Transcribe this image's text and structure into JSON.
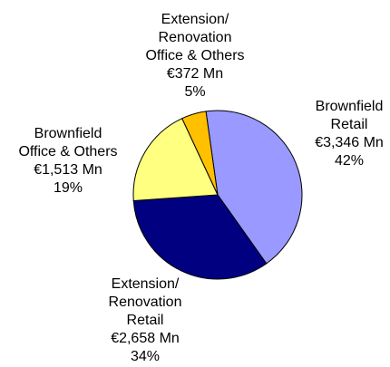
{
  "chart_data": {
    "type": "pie",
    "categories": [
      "Brownfield\nRetail",
      "Extension/\nRenovation\nRetail",
      "Brownfield\nOffice & Others",
      "Extension/\nRenovation\nOffice & Others"
    ],
    "values": [
      3346,
      2658,
      1513,
      372
    ],
    "value_labels": [
      "€3,346 Mn",
      "€2,658 Mn",
      "€1,513 Mn",
      "€372 Mn"
    ],
    "shares": [
      42,
      34,
      19,
      5
    ],
    "share_labels": [
      "42%",
      "34%",
      "19%",
      "5%"
    ],
    "colors": [
      "#9999ff",
      "#000080",
      "#ffff80",
      "#ffc000"
    ]
  }
}
